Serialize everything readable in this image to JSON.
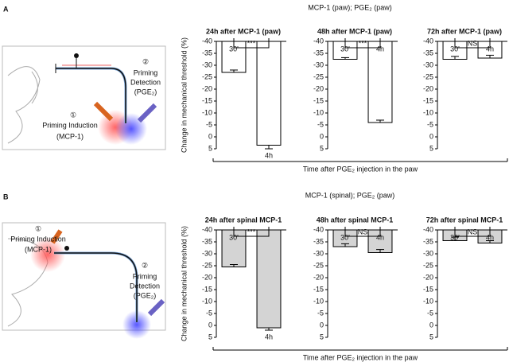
{
  "panels": [
    {
      "label": "A",
      "title": "MCP-1 (paw); PGE₂ (paw)",
      "ylabel": "Change in mechanical threshold (%)",
      "xlabel": "Time after PGE₂ injection in the paw",
      "diagram": {
        "step1": "①",
        "induction": "Priming Induction",
        "induction_agent": "(MCP-1)",
        "step2": "②",
        "detection_lines": [
          "Priming",
          "Detection",
          "(PGE₂)"
        ]
      }
    },
    {
      "label": "B",
      "title": "MCP-1 (spinal); PGE₂ (paw)",
      "ylabel": "Change in mechanical threshold (%)",
      "xlabel": "Time after PGE₂ injection in the paw",
      "diagram": {
        "step1": "①",
        "induction": "Priming Induction",
        "induction_agent": "(MCP-1)",
        "step2": "②",
        "detection_lines": [
          "Priming",
          "Detection",
          "(PGE₂)"
        ]
      }
    }
  ],
  "chart_data": [
    {
      "type": "bar",
      "title": "24h after MCP-1 (paw)",
      "categories": [
        "30'",
        "4h"
      ],
      "values": [
        -27,
        3.5
      ],
      "errors": [
        1,
        1.5
      ],
      "color": "#ffffff",
      "ylim": [
        5,
        -40
      ],
      "yticks": [
        5,
        0,
        -5,
        -10,
        -15,
        -20,
        -25,
        -30,
        -35,
        -40
      ],
      "significance": "***"
    },
    {
      "type": "bar",
      "title": "48h after MCP-1 (paw)",
      "categories": [
        "30'",
        "4h"
      ],
      "values": [
        -32.5,
        -6
      ],
      "errors": [
        0.7,
        1
      ],
      "color": "#ffffff",
      "ylim": [
        5,
        -40
      ],
      "yticks": [
        5,
        0,
        -5,
        -10,
        -15,
        -20,
        -25,
        -30,
        -35,
        -40
      ],
      "significance": "***"
    },
    {
      "type": "bar",
      "title": "72h after MCP-1 (paw)",
      "categories": [
        "30'",
        "4h"
      ],
      "values": [
        -32.5,
        -33
      ],
      "errors": [
        1.2,
        1.2
      ],
      "color": "#ffffff",
      "ylim": [
        5,
        -40
      ],
      "yticks": [
        5,
        0,
        -5,
        -10,
        -15,
        -20,
        -25,
        -30,
        -35,
        -40
      ],
      "significance": "NS"
    },
    {
      "type": "bar",
      "title": "24h after spinal MCP-1",
      "categories": [
        "30'",
        "4h"
      ],
      "values": [
        -24.5,
        1
      ],
      "errors": [
        1,
        1
      ],
      "color": "#d4d4d4",
      "ylim": [
        5,
        -40
      ],
      "yticks": [
        5,
        0,
        -5,
        -10,
        -15,
        -20,
        -25,
        -30,
        -35,
        -40
      ],
      "significance": "***"
    },
    {
      "type": "bar",
      "title": "48h after spinal MCP-1",
      "categories": [
        "30'",
        "4h"
      ],
      "values": [
        -33,
        -30.5
      ],
      "errors": [
        1.2,
        1.3
      ],
      "color": "#d4d4d4",
      "ylim": [
        5,
        -40
      ],
      "yticks": [
        5,
        0,
        -5,
        -10,
        -15,
        -20,
        -25,
        -30,
        -35,
        -40
      ],
      "significance": "NS"
    },
    {
      "type": "bar",
      "title": "72h after spinal MCP-1",
      "categories": [
        "30'",
        "4h"
      ],
      "values": [
        -35.5,
        -34.5
      ],
      "errors": [
        1.5,
        1
      ],
      "color": "#d4d4d4",
      "ylim": [
        5,
        -40
      ],
      "yticks": [
        5,
        0,
        -5,
        -10,
        -15,
        -20,
        -25,
        -30,
        -35,
        -40
      ],
      "significance": "NS"
    }
  ]
}
